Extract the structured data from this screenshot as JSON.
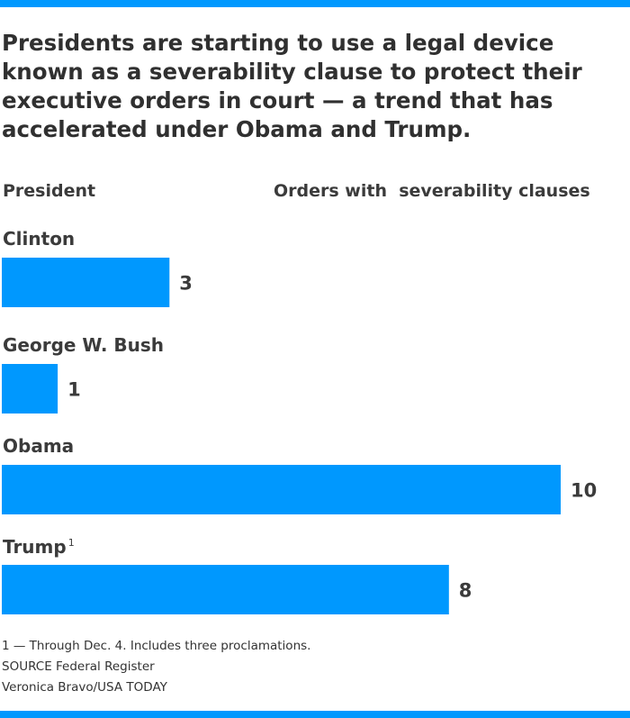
{
  "colors": {
    "accent": "#0098fe",
    "text": "#3b3b3b"
  },
  "title": "Presidents are starting to use a legal device known as a severability clause to protect their executive orders in court — a trend that has accelerated under Obama and Trump.",
  "column_headers": {
    "left": "President",
    "right": "Orders with  severability clauses"
  },
  "chart_data": {
    "type": "bar",
    "orientation": "horizontal",
    "title": "Presidents are starting to use a legal device known as a severability clause to protect their executive orders in court — a trend that has accelerated under Obama and Trump.",
    "categories": [
      "Clinton",
      "George W. Bush",
      "Obama",
      "Trump"
    ],
    "category_footnotes": [
      "",
      "",
      "",
      "1"
    ],
    "values": [
      3,
      1,
      10,
      8
    ],
    "xlabel": "Orders with  severability clauses",
    "ylabel": "President",
    "xlim": [
      0,
      10
    ],
    "grid": false,
    "legend": "none"
  },
  "footnote": "1 — Through Dec. 4. Includes three proclamations.",
  "source": "SOURCE Federal Register",
  "credit": "Veronica Bravo/USA TODAY"
}
